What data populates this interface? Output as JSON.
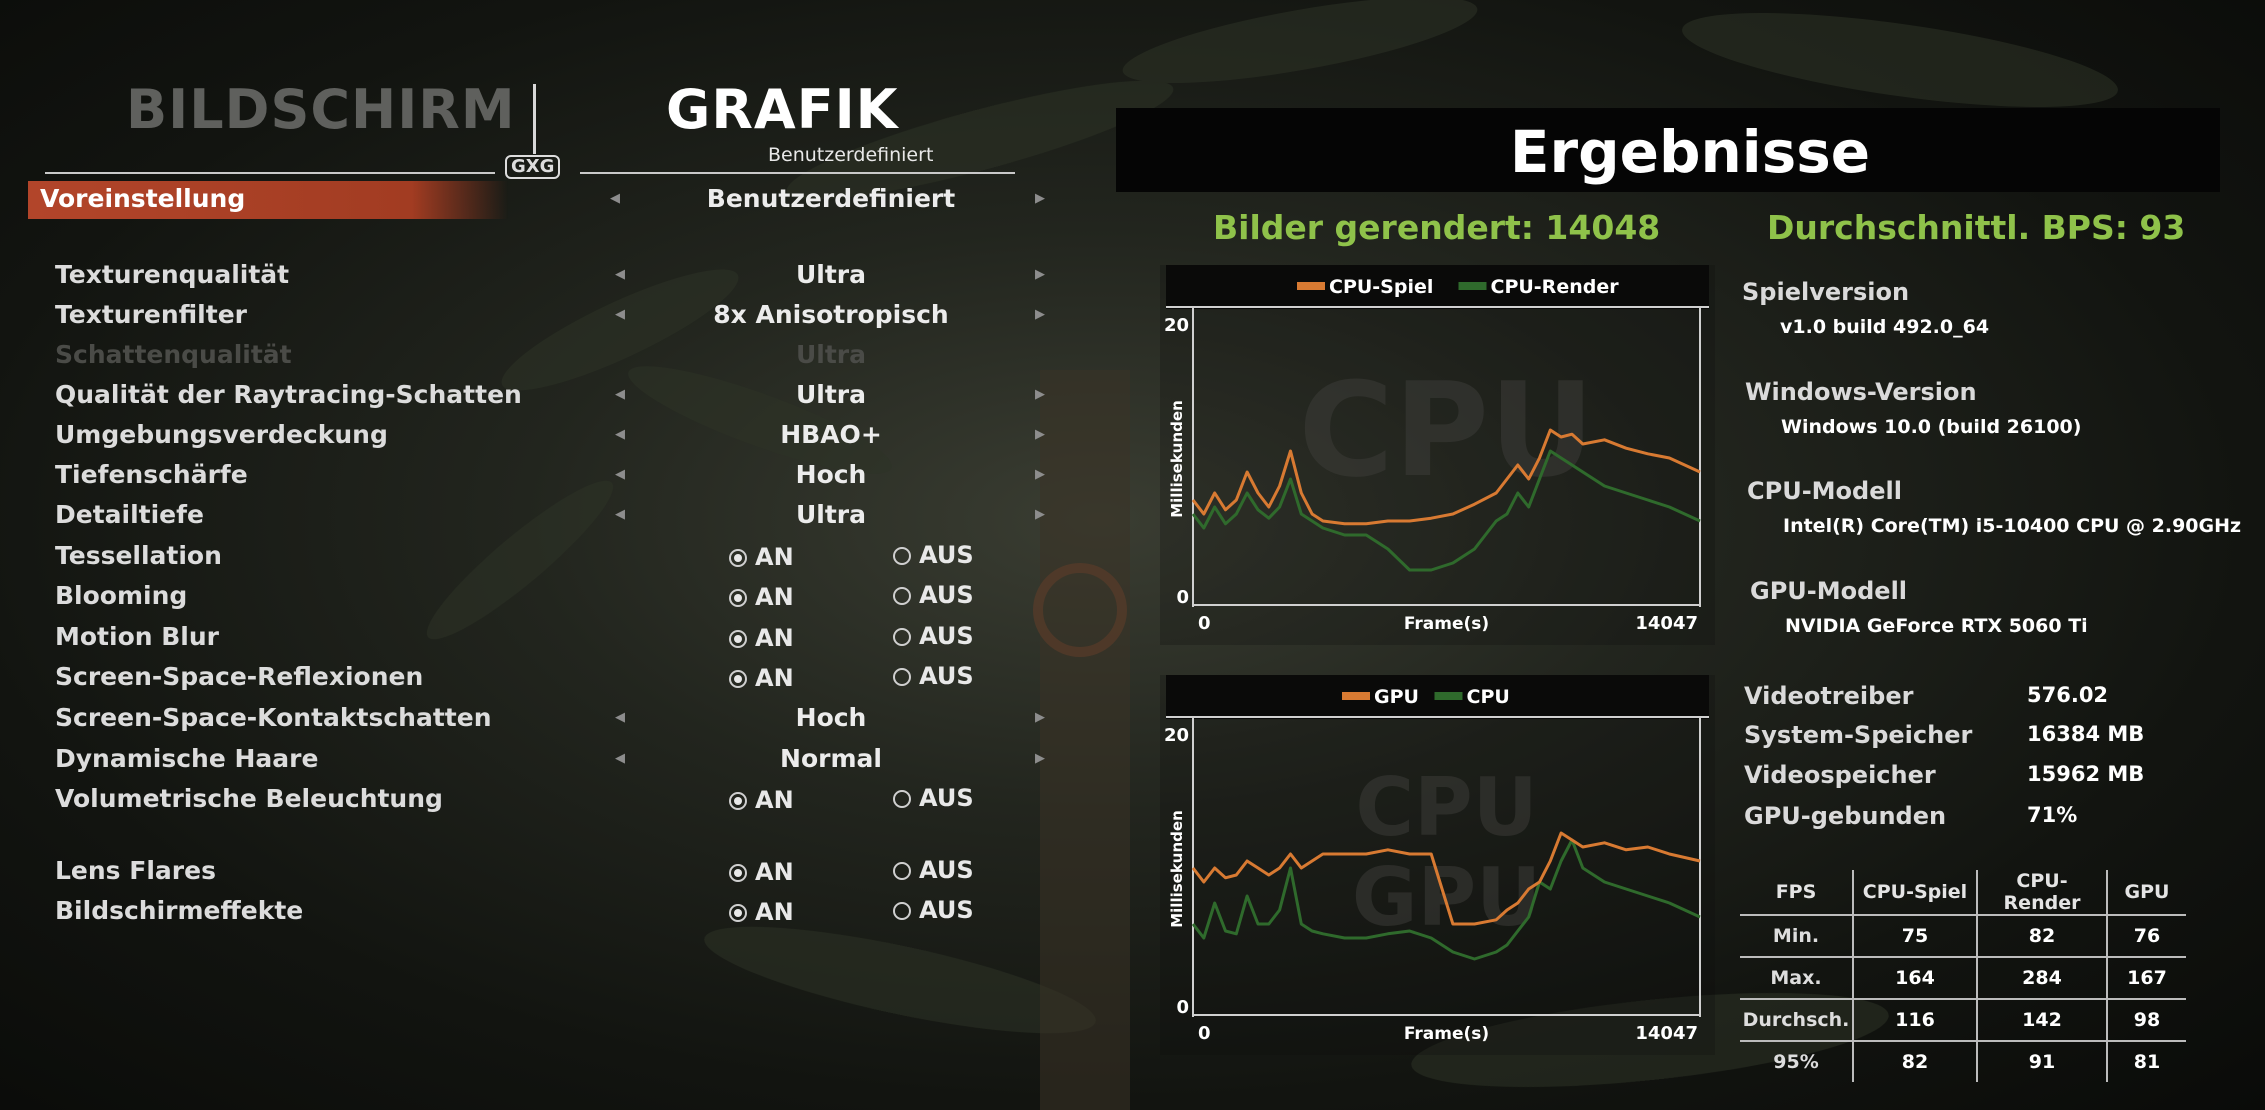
{
  "tabs": {
    "bildschirm": "BILDSCHIRM",
    "grafik": "GRAFIK",
    "grafik_subtitle": "Benutzerdefiniert"
  },
  "logo_text": "GXG",
  "preset": {
    "label": "Voreinstellung",
    "value": "Benutzerdefiniert"
  },
  "settings": [
    {
      "label": "Texturenqualität",
      "type": "select",
      "value": "Ultra"
    },
    {
      "label": "Texturenfilter",
      "type": "select",
      "value": "8x Anisotropisch"
    },
    {
      "label": "Schattenqualität",
      "type": "select",
      "value": "Ultra",
      "disabled": true
    },
    {
      "label": "Qualität der Raytracing-Schatten",
      "type": "select",
      "value": "Ultra"
    },
    {
      "label": "Umgebungsverdeckung",
      "type": "select",
      "value": "HBAO+"
    },
    {
      "label": "Tiefenschärfe",
      "type": "select",
      "value": "Hoch"
    },
    {
      "label": "Detailtiefe",
      "type": "select",
      "value": "Ultra"
    },
    {
      "label": "Tessellation",
      "type": "toggle",
      "on": true
    },
    {
      "label": "Blooming",
      "type": "toggle",
      "on": true
    },
    {
      "label": "Motion Blur",
      "type": "toggle",
      "on": true
    },
    {
      "label": "Screen-Space-Reflexionen",
      "type": "toggle",
      "on": true
    },
    {
      "label": "Screen-Space-Kontaktschatten",
      "type": "select",
      "value": "Hoch"
    },
    {
      "label": "Dynamische Haare",
      "type": "select",
      "value": "Normal"
    },
    {
      "label": "Volumetrische Beleuchtung",
      "type": "toggle",
      "on": true
    },
    {
      "label": "Lens Flares",
      "type": "toggle",
      "on": true
    },
    {
      "label": "Bildschirmeffekte",
      "type": "toggle",
      "on": true
    }
  ],
  "toggle_labels": {
    "on": "AN",
    "off": "AUS"
  },
  "results": {
    "title": "Ergebnisse",
    "frames_rendered": "Bilder gerendert: 14048",
    "avg_fps": "Durchschnittl. BPS: 93"
  },
  "colors": {
    "orange": "#d87a32",
    "green": "#2f6a2c",
    "accent_green": "#8fc24a",
    "preset_bar": "#b2452a"
  },
  "info": [
    {
      "label": "Spielversion",
      "value": "v1.0 build 492.0_64"
    },
    {
      "label": "Windows-Version",
      "value": "Windows 10.0 (build 26100)"
    },
    {
      "label": "CPU-Modell",
      "value": "Intel(R) Core(TM) i5-10400 CPU @ 2.90GHz"
    },
    {
      "label": "GPU-Modell",
      "value": "NVIDIA GeForce RTX 5060 Ti"
    }
  ],
  "specs": [
    {
      "label": "Videotreiber",
      "value": "576.02"
    },
    {
      "label": "System-Speicher",
      "value": "16384 MB"
    },
    {
      "label": "Videospeicher",
      "value": "15962 MB"
    },
    {
      "label": "GPU-gebunden",
      "value": "71%"
    }
  ],
  "fps_table": {
    "headers": [
      "FPS",
      "CPU-Spiel",
      "CPU-Render",
      "GPU"
    ],
    "rows": [
      {
        "label": "Min.",
        "values": [
          "75",
          "82",
          "76"
        ]
      },
      {
        "label": "Max.",
        "values": [
          "164",
          "284",
          "167"
        ]
      },
      {
        "label": "Durchsch.",
        "values": [
          "116",
          "142",
          "98"
        ]
      },
      {
        "label": "95%",
        "values": [
          "82",
          "91",
          "81"
        ]
      }
    ]
  },
  "chart_data": [
    {
      "type": "line",
      "watermark": "CPU",
      "xlabel": "Frame(s)",
      "ylabel": "Millisekunden",
      "xlim": [
        0,
        14047
      ],
      "ylim": [
        0,
        20
      ],
      "yticks": [
        "20",
        "0"
      ],
      "xticks": [
        "0",
        "14047"
      ],
      "legend_position": "top-center",
      "series": [
        {
          "name": "CPU-Spiel",
          "color": "#d87a32",
          "x": [
            0,
            300,
            600,
            900,
            1200,
            1500,
            1800,
            2100,
            2400,
            2700,
            3000,
            3300,
            3600,
            4200,
            4800,
            5400,
            6000,
            6600,
            7200,
            7800,
            8400,
            8700,
            9000,
            9300,
            9600,
            9900,
            10200,
            10500,
            10800,
            11400,
            12000,
            12600,
            13200,
            14047
          ],
          "y": [
            7.5,
            6.5,
            8.0,
            6.8,
            7.5,
            9.5,
            8.0,
            7.0,
            8.5,
            11.0,
            8.0,
            6.5,
            6.0,
            5.8,
            5.8,
            6.0,
            6.0,
            6.2,
            6.5,
            7.2,
            8.0,
            9.0,
            10.0,
            9.0,
            10.5,
            12.5,
            12.0,
            12.2,
            11.5,
            11.8,
            11.2,
            10.8,
            10.5,
            9.5
          ]
        },
        {
          "name": "CPU-Render",
          "color": "#2f6a2c",
          "x": [
            0,
            300,
            600,
            900,
            1200,
            1500,
            1800,
            2100,
            2400,
            2700,
            3000,
            3300,
            3600,
            4200,
            4800,
            5400,
            6000,
            6600,
            7200,
            7800,
            8400,
            8700,
            9000,
            9300,
            9600,
            9900,
            10200,
            10500,
            10800,
            11400,
            12000,
            12600,
            13200,
            14047
          ],
          "y": [
            6.5,
            5.5,
            7.0,
            5.8,
            6.5,
            8.0,
            6.8,
            6.2,
            7.0,
            9.0,
            6.5,
            6.0,
            5.5,
            5.0,
            5.0,
            4.0,
            2.5,
            2.5,
            3.0,
            4.0,
            6.0,
            6.5,
            8.0,
            7.0,
            9.0,
            11.0,
            10.5,
            10.0,
            9.5,
            8.5,
            8.0,
            7.5,
            7.0,
            6.0
          ]
        }
      ]
    },
    {
      "type": "line",
      "watermark_lines": [
        "CPU",
        "GPU"
      ],
      "xlabel": "Frame(s)",
      "ylabel": "Millisekunden",
      "xlim": [
        0,
        14047
      ],
      "ylim": [
        0,
        20
      ],
      "yticks": [
        "20",
        "0"
      ],
      "xticks": [
        "0",
        "14047"
      ],
      "legend_position": "top-center",
      "series": [
        {
          "name": "GPU",
          "color": "#d87a32",
          "x": [
            0,
            300,
            600,
            900,
            1200,
            1500,
            1800,
            2100,
            2400,
            2700,
            3000,
            3300,
            3600,
            4200,
            4800,
            5400,
            6000,
            6600,
            7200,
            7800,
            8400,
            8700,
            9000,
            9300,
            9600,
            9900,
            10200,
            10500,
            10800,
            11400,
            12000,
            12600,
            13200,
            14047
          ],
          "y": [
            10.5,
            9.5,
            10.5,
            9.8,
            10.0,
            11.0,
            10.5,
            10.0,
            10.5,
            11.5,
            10.5,
            11.0,
            11.5,
            11.5,
            11.5,
            11.8,
            11.5,
            11.5,
            6.5,
            6.5,
            6.8,
            7.5,
            8.0,
            9.0,
            9.5,
            11.0,
            13.0,
            12.5,
            12.0,
            12.3,
            11.8,
            12.0,
            11.5,
            11.0
          ]
        },
        {
          "name": "CPU",
          "color": "#2f6a2c",
          "x": [
            0,
            300,
            600,
            900,
            1200,
            1500,
            1800,
            2100,
            2400,
            2700,
            3000,
            3300,
            3600,
            4200,
            4800,
            5400,
            6000,
            6600,
            7200,
            7800,
            8400,
            8700,
            9000,
            9300,
            9600,
            9900,
            10200,
            10500,
            10800,
            11400,
            12000,
            12600,
            13200,
            14047
          ],
          "y": [
            6.5,
            5.5,
            8.0,
            6.0,
            5.8,
            8.5,
            6.5,
            6.5,
            7.5,
            10.5,
            6.5,
            6.0,
            5.8,
            5.5,
            5.5,
            5.8,
            6.0,
            5.5,
            4.5,
            4.0,
            4.5,
            5.0,
            6.0,
            7.0,
            9.5,
            9.0,
            11.0,
            12.5,
            10.5,
            9.5,
            9.0,
            8.5,
            8.0,
            7.0
          ]
        }
      ]
    }
  ]
}
